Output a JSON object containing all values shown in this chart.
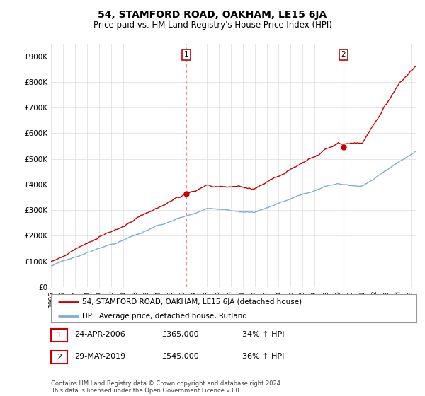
{
  "title": "54, STAMFORD ROAD, OAKHAM, LE15 6JA",
  "subtitle": "Price paid vs. HM Land Registry's House Price Index (HPI)",
  "hpi_label": "HPI: Average price, detached house, Rutland",
  "property_label": "54, STAMFORD ROAD, OAKHAM, LE15 6JA (detached house)",
  "footer": "Contains HM Land Registry data © Crown copyright and database right 2024.\nThis data is licensed under the Open Government Licence v3.0.",
  "sale1": {
    "num": "1",
    "date": "24-APR-2006",
    "price": "£365,000",
    "hpi": "34% ↑ HPI"
  },
  "sale2": {
    "num": "2",
    "date": "29-MAY-2019",
    "price": "£545,000",
    "hpi": "36% ↑ HPI"
  },
  "sale1_x": 2006.31,
  "sale1_y": 365000,
  "sale2_x": 2019.41,
  "sale2_y": 545000,
  "property_color": "#cc0000",
  "hpi_color": "#7bafd4",
  "vline_color": "#ff8888",
  "ylim": [
    0,
    950000
  ],
  "xlim": [
    1995,
    2025.5
  ],
  "ylabel_ticks": [
    0,
    100000,
    200000,
    300000,
    400000,
    500000,
    600000,
    700000,
    800000,
    900000
  ],
  "xticks": [
    1995,
    1996,
    1997,
    1998,
    1999,
    2000,
    2001,
    2002,
    2003,
    2004,
    2005,
    2006,
    2007,
    2008,
    2009,
    2010,
    2011,
    2012,
    2013,
    2014,
    2015,
    2016,
    2017,
    2018,
    2019,
    2020,
    2021,
    2022,
    2023,
    2024,
    2025
  ],
  "background_color": "#ffffff",
  "grid_color": "#dddddd"
}
